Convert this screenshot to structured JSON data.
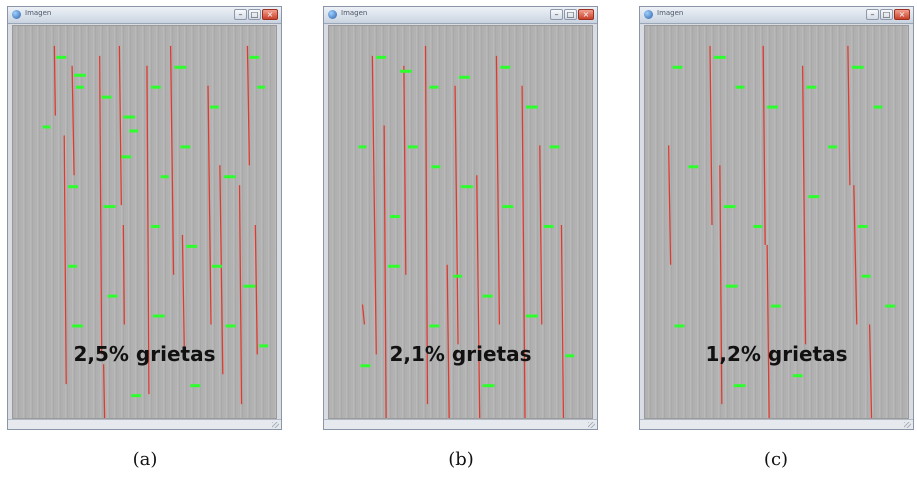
{
  "windows": [
    {
      "title": "Imagen",
      "percent_label": "2,5% grietas",
      "caption": "(a)"
    },
    {
      "title": "Imagen",
      "percent_label": "2,1% grietas",
      "caption": "(b)"
    },
    {
      "title": "Imagen",
      "percent_label": "1,2% grietas",
      "caption": "(c)"
    }
  ],
  "window_controls": {
    "minimize": "–",
    "maximize": "□",
    "close": "×"
  },
  "colors": {
    "crack": "#e03a2e",
    "label": "#2dff2d",
    "surface": "#b0b0b0"
  }
}
